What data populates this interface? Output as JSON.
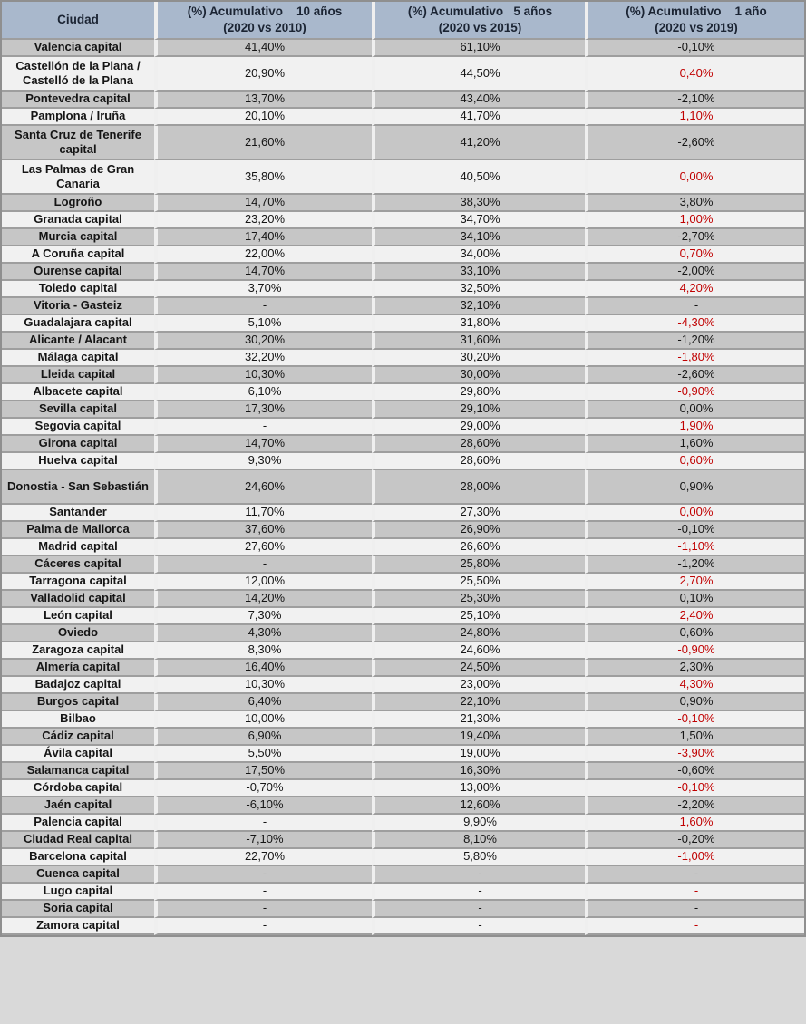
{
  "chart_data": {
    "type": "table",
    "columns": [
      {
        "line1": "Ciudad",
        "line2": ""
      },
      {
        "line1": "(%) Acumulativo    10 años",
        "line2": "(2020 vs 2010)"
      },
      {
        "line1": "(%) Acumulativo   5 años",
        "line2": "(2020 vs 2015)"
      },
      {
        "line1": "(%) Acumulativo    1 año",
        "line2": "(2020 vs 2019)"
      }
    ],
    "rows": [
      {
        "city": "Valencia capital",
        "acc10": "41,40%",
        "acc5": "61,10%",
        "acc1": "-0,10%",
        "acc1_red": false,
        "shaded": true,
        "tall": false
      },
      {
        "city": "Castellón de la Plana / Castelló de la Plana",
        "acc10": "20,90%",
        "acc5": "44,50%",
        "acc1": "0,40%",
        "acc1_red": true,
        "shaded": false,
        "tall": true
      },
      {
        "city": "Pontevedra capital",
        "acc10": "13,70%",
        "acc5": "43,40%",
        "acc1": "-2,10%",
        "acc1_red": false,
        "shaded": true,
        "tall": false
      },
      {
        "city": "Pamplona / Iruña",
        "acc10": "20,10%",
        "acc5": "41,70%",
        "acc1": "1,10%",
        "acc1_red": true,
        "shaded": false,
        "tall": false
      },
      {
        "city": "Santa Cruz de Tenerife capital",
        "acc10": "21,60%",
        "acc5": "41,20%",
        "acc1": "-2,60%",
        "acc1_red": false,
        "shaded": true,
        "tall": true
      },
      {
        "city": "Las Palmas de Gran Canaria",
        "acc10": "35,80%",
        "acc5": "40,50%",
        "acc1": "0,00%",
        "acc1_red": true,
        "shaded": false,
        "tall": true
      },
      {
        "city": "Logroño",
        "acc10": "14,70%",
        "acc5": "38,30%",
        "acc1": "3,80%",
        "acc1_red": false,
        "shaded": true,
        "tall": false
      },
      {
        "city": "Granada capital",
        "acc10": "23,20%",
        "acc5": "34,70%",
        "acc1": "1,00%",
        "acc1_red": true,
        "shaded": false,
        "tall": false
      },
      {
        "city": "Murcia capital",
        "acc10": "17,40%",
        "acc5": "34,10%",
        "acc1": "-2,70%",
        "acc1_red": false,
        "shaded": true,
        "tall": false
      },
      {
        "city": "A Coruña capital",
        "acc10": "22,00%",
        "acc5": "34,00%",
        "acc1": "0,70%",
        "acc1_red": true,
        "shaded": false,
        "tall": false
      },
      {
        "city": "Ourense capital",
        "acc10": "14,70%",
        "acc5": "33,10%",
        "acc1": "-2,00%",
        "acc1_red": false,
        "shaded": true,
        "tall": false
      },
      {
        "city": "Toledo capital",
        "acc10": "3,70%",
        "acc5": "32,50%",
        "acc1": "4,20%",
        "acc1_red": true,
        "shaded": false,
        "tall": false
      },
      {
        "city": "Vitoria - Gasteiz",
        "acc10": "-",
        "acc5": "32,10%",
        "acc1": "-",
        "acc1_red": false,
        "shaded": true,
        "tall": false
      },
      {
        "city": "Guadalajara capital",
        "acc10": "5,10%",
        "acc5": "31,80%",
        "acc1": "-4,30%",
        "acc1_red": true,
        "shaded": false,
        "tall": false
      },
      {
        "city": "Alicante / Alacant",
        "acc10": "30,20%",
        "acc5": "31,60%",
        "acc1": "-1,20%",
        "acc1_red": false,
        "shaded": true,
        "tall": false
      },
      {
        "city": "Málaga capital",
        "acc10": "32,20%",
        "acc5": "30,20%",
        "acc1": "-1,80%",
        "acc1_red": true,
        "shaded": false,
        "tall": false
      },
      {
        "city": "Lleida capital",
        "acc10": "10,30%",
        "acc5": "30,00%",
        "acc1": "-2,60%",
        "acc1_red": false,
        "shaded": true,
        "tall": false
      },
      {
        "city": "Albacete capital",
        "acc10": "6,10%",
        "acc5": "29,80%",
        "acc1": "-0,90%",
        "acc1_red": true,
        "shaded": false,
        "tall": false
      },
      {
        "city": "Sevilla capital",
        "acc10": "17,30%",
        "acc5": "29,10%",
        "acc1": "0,00%",
        "acc1_red": false,
        "shaded": true,
        "tall": false
      },
      {
        "city": "Segovia capital",
        "acc10": "-",
        "acc5": "29,00%",
        "acc1": "1,90%",
        "acc1_red": true,
        "shaded": false,
        "tall": false
      },
      {
        "city": "Girona capital",
        "acc10": "14,70%",
        "acc5": "28,60%",
        "acc1": "1,60%",
        "acc1_red": false,
        "shaded": true,
        "tall": false
      },
      {
        "city": "Huelva capital",
        "acc10": "9,30%",
        "acc5": "28,60%",
        "acc1": "0,60%",
        "acc1_red": true,
        "shaded": false,
        "tall": false
      },
      {
        "city": "Donostia - San Sebastián",
        "acc10": "24,60%",
        "acc5": "28,00%",
        "acc1": "0,90%",
        "acc1_red": false,
        "shaded": true,
        "tall": true
      },
      {
        "city": "Santander",
        "acc10": "11,70%",
        "acc5": "27,30%",
        "acc1": "0,00%",
        "acc1_red": true,
        "shaded": false,
        "tall": false
      },
      {
        "city": "Palma de Mallorca",
        "acc10": "37,60%",
        "acc5": "26,90%",
        "acc1": "-0,10%",
        "acc1_red": false,
        "shaded": true,
        "tall": false
      },
      {
        "city": "Madrid capital",
        "acc10": "27,60%",
        "acc5": "26,60%",
        "acc1": "-1,10%",
        "acc1_red": true,
        "shaded": false,
        "tall": false
      },
      {
        "city": "Cáceres capital",
        "acc10": "-",
        "acc5": "25,80%",
        "acc1": "-1,20%",
        "acc1_red": false,
        "shaded": true,
        "tall": false
      },
      {
        "city": "Tarragona capital",
        "acc10": "12,00%",
        "acc5": "25,50%",
        "acc1": "2,70%",
        "acc1_red": true,
        "shaded": false,
        "tall": false
      },
      {
        "city": "Valladolid capital",
        "acc10": "14,20%",
        "acc5": "25,30%",
        "acc1": "0,10%",
        "acc1_red": false,
        "shaded": true,
        "tall": false
      },
      {
        "city": "León capital",
        "acc10": "7,30%",
        "acc5": "25,10%",
        "acc1": "2,40%",
        "acc1_red": true,
        "shaded": false,
        "tall": false
      },
      {
        "city": "Oviedo",
        "acc10": "4,30%",
        "acc5": "24,80%",
        "acc1": "0,60%",
        "acc1_red": false,
        "shaded": true,
        "tall": false
      },
      {
        "city": "Zaragoza capital",
        "acc10": "8,30%",
        "acc5": "24,60%",
        "acc1": "-0,90%",
        "acc1_red": true,
        "shaded": false,
        "tall": false
      },
      {
        "city": "Almería capital",
        "acc10": "16,40%",
        "acc5": "24,50%",
        "acc1": "2,30%",
        "acc1_red": false,
        "shaded": true,
        "tall": false
      },
      {
        "city": "Badajoz capital",
        "acc10": "10,30%",
        "acc5": "23,00%",
        "acc1": "4,30%",
        "acc1_red": true,
        "shaded": false,
        "tall": false
      },
      {
        "city": "Burgos capital",
        "acc10": "6,40%",
        "acc5": "22,10%",
        "acc1": "0,90%",
        "acc1_red": false,
        "shaded": true,
        "tall": false
      },
      {
        "city": "Bilbao",
        "acc10": "10,00%",
        "acc5": "21,30%",
        "acc1": "-0,10%",
        "acc1_red": true,
        "shaded": false,
        "tall": false
      },
      {
        "city": "Cádiz capital",
        "acc10": "6,90%",
        "acc5": "19,40%",
        "acc1": "1,50%",
        "acc1_red": false,
        "shaded": true,
        "tall": false
      },
      {
        "city": "Ávila capital",
        "acc10": "5,50%",
        "acc5": "19,00%",
        "acc1": "-3,90%",
        "acc1_red": true,
        "shaded": false,
        "tall": false
      },
      {
        "city": "Salamanca capital",
        "acc10": "17,50%",
        "acc5": "16,30%",
        "acc1": "-0,60%",
        "acc1_red": false,
        "shaded": true,
        "tall": false
      },
      {
        "city": "Córdoba capital",
        "acc10": "-0,70%",
        "acc5": "13,00%",
        "acc1": "-0,10%",
        "acc1_red": true,
        "shaded": false,
        "tall": false
      },
      {
        "city": "Jaén capital",
        "acc10": "-6,10%",
        "acc5": "12,60%",
        "acc1": "-2,20%",
        "acc1_red": false,
        "shaded": true,
        "tall": false
      },
      {
        "city": "Palencia capital",
        "acc10": "-",
        "acc5": "9,90%",
        "acc1": "1,60%",
        "acc1_red": true,
        "shaded": false,
        "tall": false
      },
      {
        "city": "Ciudad Real capital",
        "acc10": "-7,10%",
        "acc5": "8,10%",
        "acc1": "-0,20%",
        "acc1_red": false,
        "shaded": true,
        "tall": false
      },
      {
        "city": "Barcelona capital",
        "acc10": "22,70%",
        "acc5": "5,80%",
        "acc1": "-1,00%",
        "acc1_red": true,
        "shaded": false,
        "tall": false
      },
      {
        "city": "Cuenca capital",
        "acc10": "-",
        "acc5": "-",
        "acc1": "-",
        "acc1_red": false,
        "shaded": true,
        "tall": false
      },
      {
        "city": "Lugo capital",
        "acc10": "-",
        "acc5": "-",
        "acc1": "-",
        "acc1_red": true,
        "shaded": false,
        "tall": false
      },
      {
        "city": "Soria capital",
        "acc10": "-",
        "acc5": "-",
        "acc1": "-",
        "acc1_red": false,
        "shaded": true,
        "tall": false
      },
      {
        "city": "Zamora capital",
        "acc10": "-",
        "acc5": "-",
        "acc1": "-",
        "acc1_red": true,
        "shaded": false,
        "tall": false
      }
    ]
  },
  "colors": {
    "header_bg": "#a9b8cc",
    "header_text": "#1b2433",
    "row_shaded_bg": "#c6c6c6",
    "row_light_bg": "#f1f1f1",
    "value_red": "#c00000",
    "grid_line": "#9e9e9e",
    "divider": "#efefef",
    "outer_border": "#8f8f8f"
  }
}
